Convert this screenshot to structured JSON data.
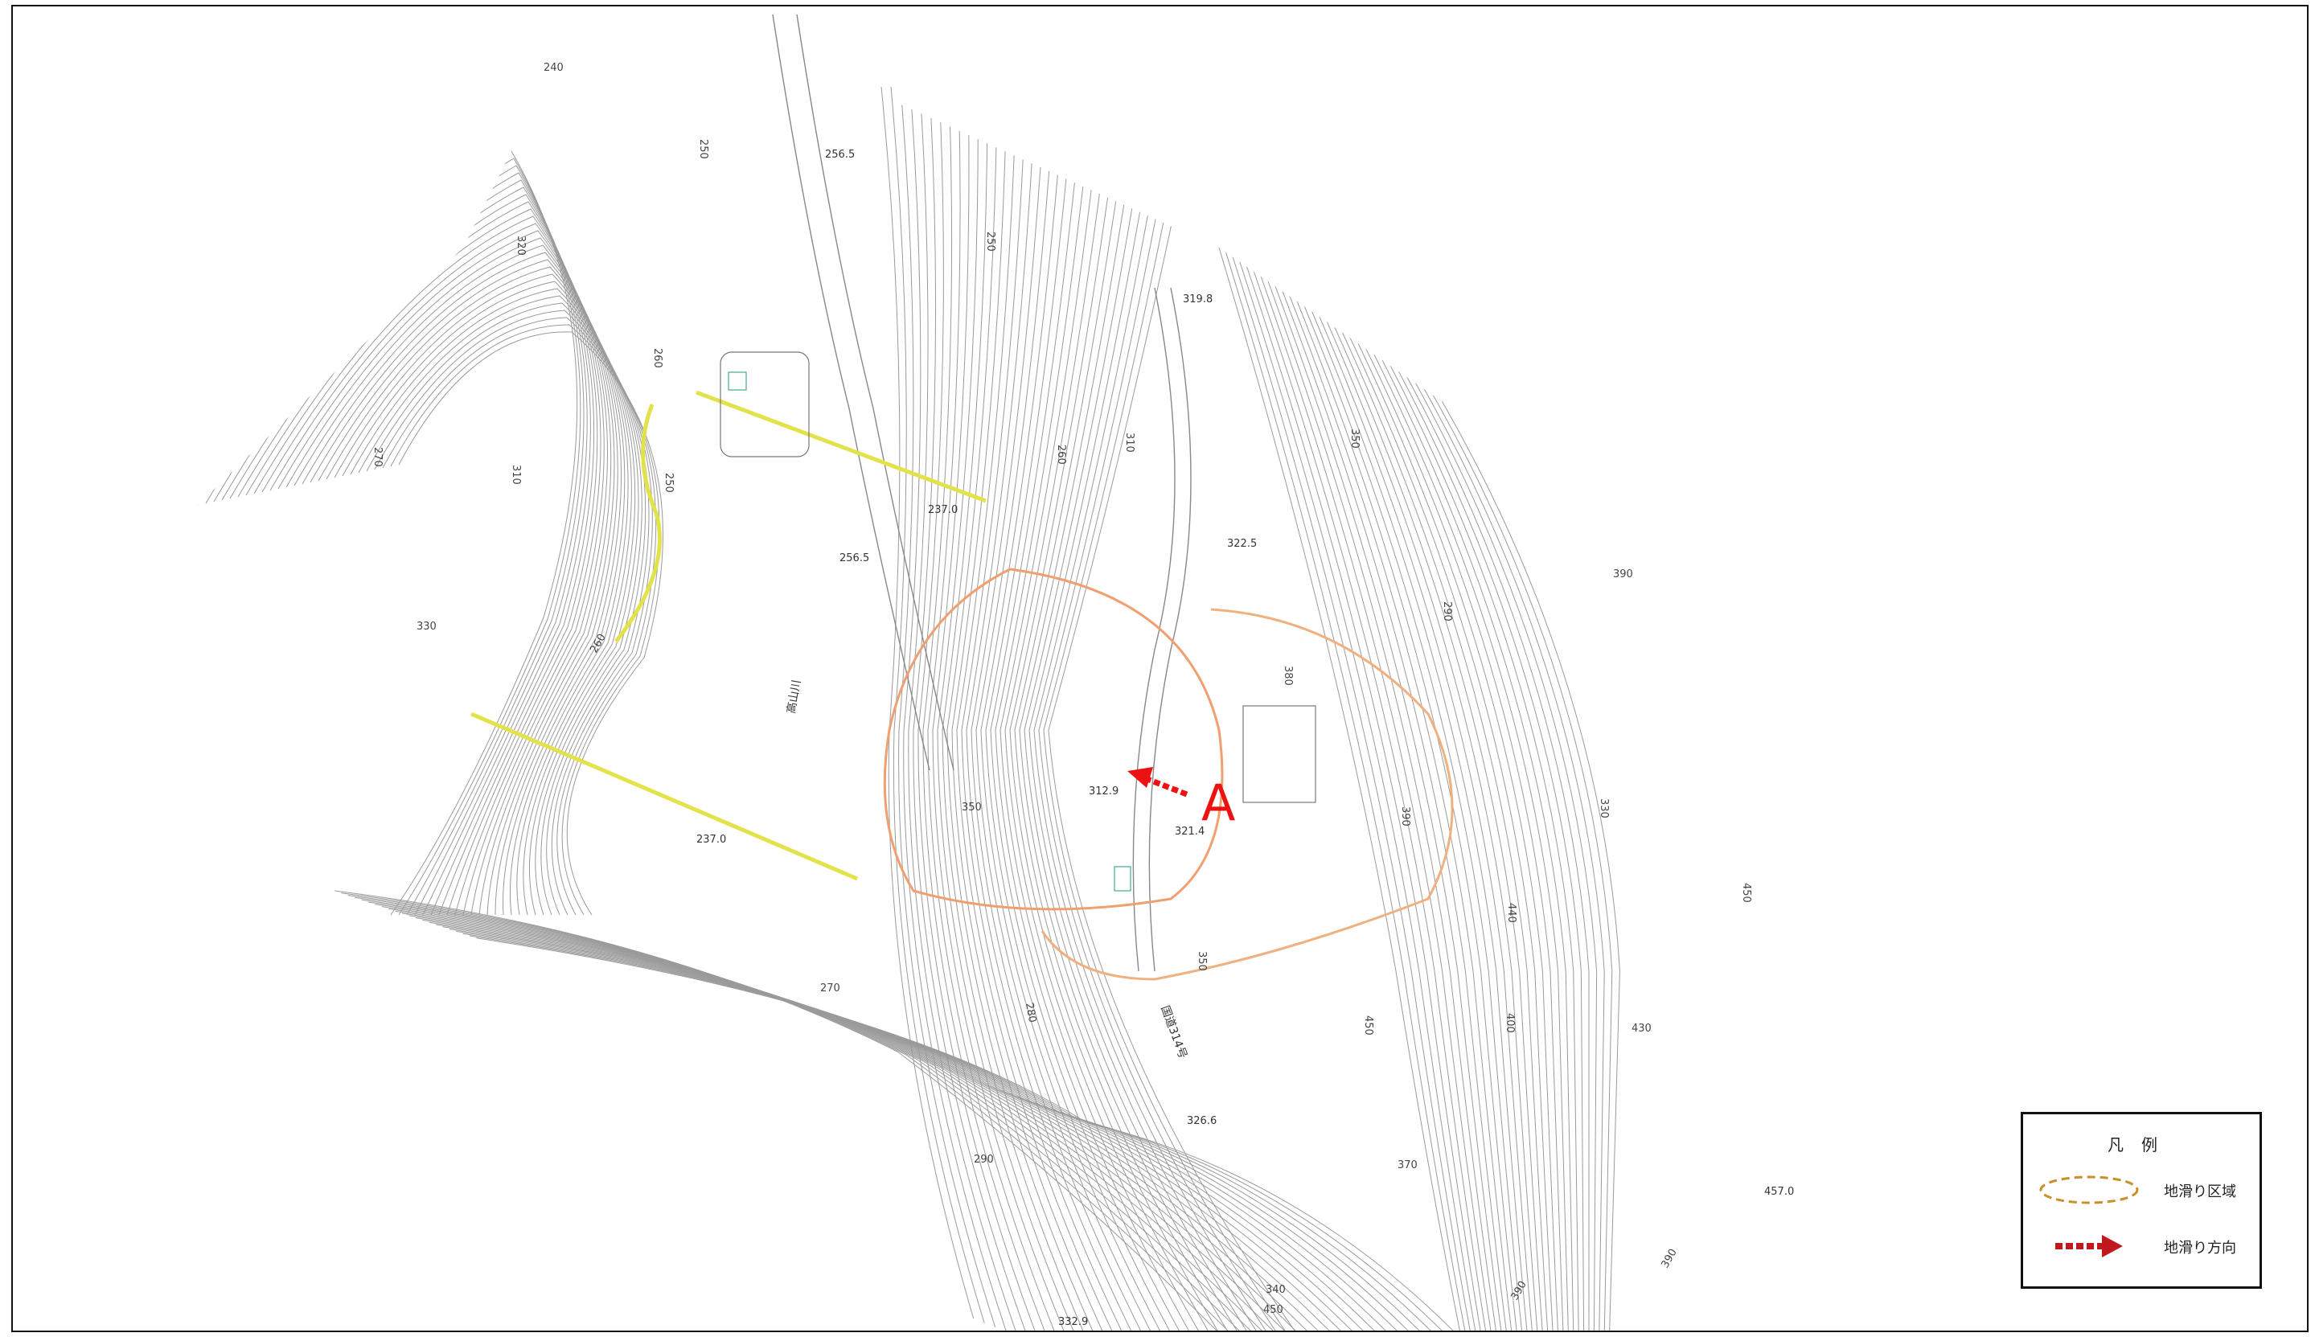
{
  "map": {
    "contour_labels": [
      "240",
      "250",
      "320",
      "260",
      "270",
      "310",
      "250",
      "330",
      "260",
      "250",
      "260",
      "350",
      "270",
      "280",
      "290",
      "310",
      "350",
      "290",
      "380",
      "390",
      "330",
      "390",
      "440",
      "450",
      "400",
      "430",
      "450",
      "370",
      "390",
      "390",
      "450",
      "350",
      "340"
    ],
    "spot_heights": [
      "256.5",
      "237.0",
      "256.5",
      "319.8",
      "322.5",
      "312.9",
      "321.4",
      "237.0",
      "326.6",
      "332.9",
      "457.0"
    ],
    "road_labels": [
      "国道314号",
      "高山川"
    ],
    "marker_letter": "A"
  },
  "legend": {
    "title": "凡例",
    "items": [
      {
        "label": "地滑り区域",
        "symbol": "dashed-ellipse-icon",
        "color": "#c8902a"
      },
      {
        "label": "地滑り方向",
        "symbol": "dashed-arrow-icon",
        "color": "#c0181c"
      }
    ]
  },
  "colors": {
    "contour": "#9a9a9a",
    "landslide_area": "#f0a070",
    "direction_arrow": "#ee1111",
    "trail": "#e0e040"
  }
}
